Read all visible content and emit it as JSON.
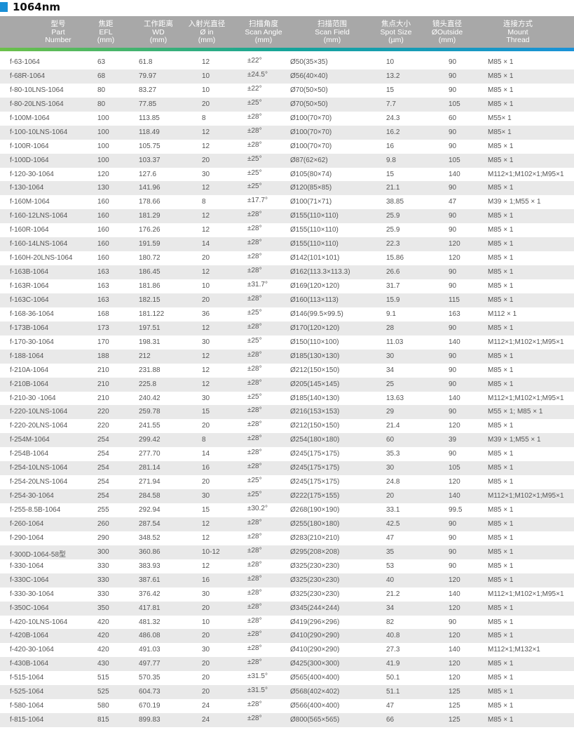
{
  "title": "1064nm",
  "colors": {
    "accent": "#1a8fd6",
    "header_bg": "#a8a8a8",
    "gradient_start": "#6cc04a",
    "gradient_end": "#1a92d8",
    "alt_row": "#e9e9e9"
  },
  "headers": [
    [
      "型号",
      "Part",
      "Number"
    ],
    [
      "焦距",
      "EFL",
      "(mm)"
    ],
    [
      "工作距离",
      "WD",
      "(mm)"
    ],
    [
      "入射光直径",
      "Ø in",
      "(mm)"
    ],
    [
      "扫描角度",
      "Scan Angle",
      "(mm)"
    ],
    [
      "扫描范围",
      "Scan Field",
      "(mm)"
    ],
    [
      "焦点大小",
      "Spot Size",
      "(µm)"
    ],
    [
      "镜头直径",
      "ØOutside",
      "(mm)"
    ],
    [
      "连接方式",
      "Mount",
      "Thread"
    ]
  ],
  "rows": [
    [
      "f-63-1064",
      "63",
      "61.8",
      "12",
      "±22°",
      "Ø50(35×35)",
      "10",
      "90",
      "M85 × 1"
    ],
    [
      "f-68R-1064",
      "68",
      "79.97",
      "10",
      "±24.5°",
      "Ø56(40×40)",
      "13.2",
      "90",
      "M85 × 1"
    ],
    [
      "f-80-10LNS-1064",
      "80",
      "83.27",
      "10",
      "±22°",
      "Ø70(50×50)",
      "15",
      "90",
      "M85 × 1"
    ],
    [
      "f-80-20LNS-1064",
      "80",
      "77.85",
      "20",
      "±25°",
      "Ø70(50×50)",
      "7.7",
      "105",
      "M85 × 1"
    ],
    [
      "f-100M-1064",
      "100",
      "113.85",
      "8",
      "±28°",
      "Ø100(70×70)",
      "24.3",
      "60",
      "M55× 1"
    ],
    [
      "f-100-10LNS-1064",
      "100",
      "118.49",
      "12",
      "±28°",
      "Ø100(70×70)",
      "16.2",
      "90",
      "M85× 1"
    ],
    [
      "f-100R-1064",
      "100",
      "105.75",
      "12",
      "±28°",
      "Ø100(70×70)",
      "16",
      "90",
      "M85 × 1"
    ],
    [
      "f-100D-1064",
      "100",
      "103.37",
      "20",
      "±25°",
      "Ø87(62×62)",
      "9.8",
      "105",
      "M85 × 1"
    ],
    [
      "f-120-30-1064",
      "120",
      "127.6",
      "30",
      "±25°",
      "Ø105(80×74)",
      "15",
      "140",
      "M112×1;M102×1;M95×1"
    ],
    [
      "f-130-1064",
      "130",
      "141.96",
      "12",
      "±25°",
      "Ø120(85×85)",
      "21.1",
      "90",
      "M85 × 1"
    ],
    [
      "f-160M-1064",
      "160",
      "178.66",
      "8",
      "±17.7°",
      "Ø100(71×71)",
      "38.85",
      "47",
      "M39 × 1;M55 × 1"
    ],
    [
      "f-160-12LNS-1064",
      "160",
      "181.29",
      "12",
      "±28°",
      "Ø155(110×110)",
      "25.9",
      "90",
      "M85 × 1"
    ],
    [
      "f-160R-1064",
      "160",
      "176.26",
      "12",
      "±28°",
      "Ø155(110×110)",
      "25.9",
      "90",
      "M85 × 1"
    ],
    [
      "f-160-14LNS-1064",
      "160",
      "191.59",
      "14",
      "±28°",
      "Ø155(110×110)",
      "22.3",
      "120",
      "M85 × 1"
    ],
    [
      "f-160H-20LNS-1064",
      "160",
      "180.72",
      "20",
      "±28°",
      "Ø142(101×101)",
      "15.86",
      "120",
      "M85 × 1"
    ],
    [
      "f-163B-1064",
      "163",
      "186.45",
      "12",
      "±28°",
      "Ø162(113.3×113.3)",
      "26.6",
      "90",
      "M85 × 1"
    ],
    [
      "f-163R-1064",
      "163",
      "181.86",
      "10",
      "±31.7°",
      "Ø169(120×120)",
      "31.7",
      "90",
      "M85 × 1"
    ],
    [
      "f-163C-1064",
      "163",
      "182.15",
      "20",
      "±28°",
      "Ø160(113×113)",
      "15.9",
      "115",
      "M85 × 1"
    ],
    [
      "f-168-36-1064",
      "168",
      "181.122",
      "36",
      "±25°",
      "Ø146(99.5×99.5)",
      "9.1",
      "163",
      "M112 × 1"
    ],
    [
      "f-173B-1064",
      "173",
      "197.51",
      "12",
      "±28°",
      "Ø170(120×120)",
      "28",
      "90",
      "M85 × 1"
    ],
    [
      "f-170-30-1064",
      "170",
      "198.31",
      "30",
      "±25°",
      "Ø150(110×100)",
      "11.03",
      "140",
      "M112×1;M102×1;M95×1"
    ],
    [
      "f-188-1064",
      "188",
      "212",
      "12",
      "±28°",
      "Ø185(130×130)",
      "30",
      "90",
      "M85 × 1"
    ],
    [
      "f-210A-1064",
      "210",
      "231.88",
      "12",
      "±28°",
      "Ø212(150×150)",
      "34",
      "90",
      "M85 × 1"
    ],
    [
      "f-210B-1064",
      "210",
      "225.8",
      "12",
      "±28°",
      "Ø205(145×145)",
      "25",
      "90",
      "M85 × 1"
    ],
    [
      "f-210-30 -1064",
      "210",
      "240.42",
      "30",
      "±25°",
      "Ø185(140×130)",
      "13.63",
      "140",
      "M112×1;M102×1;M95×1"
    ],
    [
      "f-220-10LNS-1064",
      "220",
      "259.78",
      "15",
      "±28°",
      "Ø216(153×153)",
      "29",
      "90",
      "M55 × 1; M85 × 1"
    ],
    [
      "f-220-20LNS-1064",
      "220",
      "241.55",
      "20",
      "±28°",
      "Ø212(150×150)",
      "21.4",
      "120",
      "M85 × 1"
    ],
    [
      "f-254M-1064",
      "254",
      "299.42",
      "8",
      "±28°",
      "Ø254(180×180)",
      "60",
      "39",
      "M39 × 1;M55 × 1"
    ],
    [
      "f-254B-1064",
      "254",
      "277.70",
      "14",
      "±28°",
      "Ø245(175×175)",
      "35.3",
      "90",
      "M85 × 1"
    ],
    [
      "f-254-10LNS-1064",
      "254",
      "281.14",
      "16",
      "±28°",
      "Ø245(175×175)",
      "30",
      "105",
      "M85 × 1"
    ],
    [
      "f-254-20LNS-1064",
      "254",
      "271.94",
      "20",
      "±25°",
      "Ø245(175×175)",
      "24.8",
      "120",
      "M85 × 1"
    ],
    [
      "f-254-30-1064",
      "254",
      "284.58",
      "30",
      "±25°",
      "Ø222(175×155)",
      "20",
      "140",
      "M112×1;M102×1;M95×1"
    ],
    [
      "f-255-8.5B-1064",
      "255",
      "292.94",
      "15",
      "±30.2°",
      "Ø268(190×190)",
      "33.1",
      "99.5",
      "M85 × 1"
    ],
    [
      "f-260-1064",
      "260",
      "287.54",
      "12",
      "±28°",
      "Ø255(180×180)",
      "42.5",
      "90",
      "M85 × 1"
    ],
    [
      "f-290-1064",
      "290",
      "348.52",
      "12",
      "±28°",
      "Ø283(210×210)",
      "47",
      "90",
      "M85 × 1"
    ],
    [
      "f-300D-1064-58型",
      "300",
      "360.86",
      "10-12",
      "±28°",
      "Ø295(208×208)",
      "35",
      "90",
      "M85 × 1"
    ],
    [
      "f-330-1064",
      "330",
      "383.93",
      "12",
      "±28°",
      "Ø325(230×230)",
      "53",
      "90",
      "M85 × 1"
    ],
    [
      "f-330C-1064",
      "330",
      "387.61",
      "16",
      "±28°",
      "Ø325(230×230)",
      "40",
      "120",
      "M85 × 1"
    ],
    [
      "f-330-30-1064",
      "330",
      "376.42",
      "30",
      "±28°",
      "Ø325(230×230)",
      "21.2",
      "140",
      "M112×1;M102×1;M95×1"
    ],
    [
      "f-350C-1064",
      "350",
      "417.81",
      "20",
      "±28°",
      "Ø345(244×244)",
      "34",
      "120",
      "M85 × 1"
    ],
    [
      "f-420-10LNS-1064",
      "420",
      "481.32",
      "10",
      "±28°",
      "Ø419(296×296)",
      "82",
      "90",
      "M85 × 1"
    ],
    [
      "f-420B-1064",
      "420",
      "486.08",
      "20",
      "±28°",
      "Ø410(290×290)",
      "40.8",
      "120",
      "M85 × 1"
    ],
    [
      "f-420-30-1064",
      "420",
      "491.03",
      "30",
      "±28°",
      "Ø410(290×290)",
      "27.3",
      "140",
      "M112×1;M132×1"
    ],
    [
      "f-430B-1064",
      "430",
      "497.77",
      "20",
      "±28°",
      "Ø425(300×300)",
      "41.9",
      "120",
      "M85 × 1"
    ],
    [
      "f-515-1064",
      "515",
      "570.35",
      "20",
      "±31.5°",
      "Ø565(400×400)",
      "50.1",
      "120",
      "M85 × 1"
    ],
    [
      "f-525-1064",
      "525",
      "604.73",
      "20",
      "±31.5°",
      "Ø568(402×402)",
      "51.1",
      "125",
      "M85 × 1"
    ],
    [
      "f-580-1064",
      "580",
      "670.19",
      "24",
      "±28°",
      "Ø566(400×400)",
      "47",
      "125",
      "M85 × 1"
    ],
    [
      "f-815-1064",
      "815",
      "899.83",
      "24",
      "±28°",
      "Ø800(565×565)",
      "66",
      "125",
      "M85 × 1"
    ]
  ]
}
